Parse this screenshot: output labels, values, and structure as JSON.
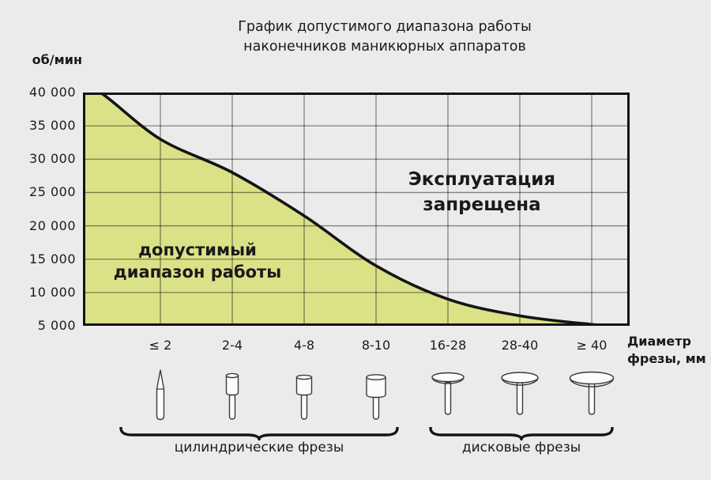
{
  "title": {
    "line1": "График допустимого диапазона работы",
    "line2": "наконечников маникюрных аппаратов"
  },
  "y_axis": {
    "label": "об/мин",
    "ticks": [
      "40 000",
      "35 000",
      "30 000",
      "25 000",
      "20 000",
      "15 000",
      "10 000",
      "5 000"
    ]
  },
  "x_axis": {
    "label_line1": "Диаметр",
    "label_line2": "фрезы, мм",
    "ticks": [
      "≤ 2",
      "2-4",
      "4-8",
      "8-10",
      "16-28",
      "28-40",
      "≥ 40"
    ]
  },
  "regions": {
    "allowed_line1": "допустимый",
    "allowed_line2": "диапазон работы",
    "forbidden_line1": "Эксплуатация",
    "forbidden_line2": "запрещена"
  },
  "tool_groups": [
    {
      "label": "цилиндрические фрезы",
      "tool_icons": [
        "needle-bur-icon",
        "small-cylinder-bur-icon",
        "medium-cylinder-bur-icon",
        "large-cylinder-bur-icon"
      ]
    },
    {
      "label": "дисковые фрезы",
      "tool_icons": [
        "small-disc-bur-icon",
        "medium-disc-bur-icon",
        "large-disc-bur-icon"
      ]
    }
  ],
  "colors": {
    "background": "#ebebeb",
    "allowed_fill": "#dbe186",
    "grid": "rgba(0,0,0,0.45)",
    "curve": "#141414",
    "text": "#1a1a1a"
  },
  "chart_data": {
    "type": "area",
    "title": "График допустимого диапазона работы наконечников маникюрных аппаратов",
    "xlabel": "Диаметр фрезы, мм",
    "ylabel": "об/мин",
    "x_categories": [
      "≤ 2",
      "2-4",
      "4-8",
      "8-10",
      "16-28",
      "28-40",
      "≥ 40"
    ],
    "max_rpm_by_category": [
      33000,
      28000,
      21500,
      14000,
      9000,
      6500,
      5200
    ],
    "rpm_at_plot_left_edge": 40000,
    "rpm_at_plot_right_edge": 5000,
    "ylim": [
      5000,
      40000
    ],
    "ytick_step": 5000,
    "grid": true,
    "legend": "none",
    "allowed_region_label": "допустимый диапазон работы",
    "forbidden_region_label": "Эксплуатация запрещена",
    "category_groups": [
      {
        "label": "цилиндрические фрезы",
        "categories": [
          "≤ 2",
          "2-4",
          "4-8",
          "8-10"
        ]
      },
      {
        "label": "дисковые фрезы",
        "categories": [
          "16-28",
          "28-40",
          "≥ 40"
        ]
      }
    ]
  }
}
